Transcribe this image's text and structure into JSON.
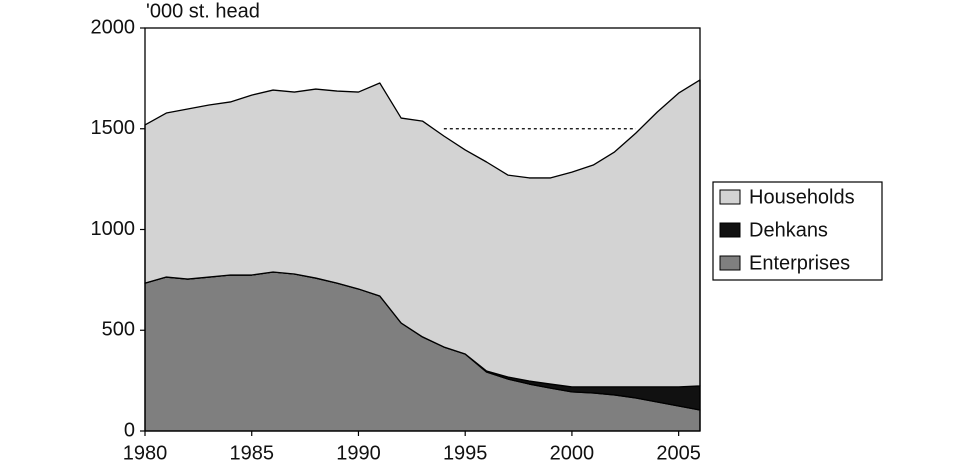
{
  "chart_data": {
    "type": "stacked_area",
    "y_axis_label": "'000 st. head",
    "x": [
      1980,
      1981,
      1982,
      1983,
      1984,
      1985,
      1986,
      1987,
      1988,
      1989,
      1990,
      1991,
      1992,
      1993,
      1994,
      1995,
      1996,
      1997,
      1998,
      1999,
      2000,
      2001,
      2002,
      2003,
      2004,
      2005,
      2006
    ],
    "series": [
      {
        "name": "Households",
        "color": "#d3d3d3",
        "values": [
          785,
          814,
          844,
          854,
          859,
          893,
          903,
          903,
          938,
          953,
          977,
          1057,
          1017,
          1071,
          1047,
          1013,
          1037,
          1002,
          1008,
          1023,
          1066,
          1101,
          1166,
          1260,
          1364,
          1458,
          1518
        ]
      },
      {
        "name": "Dehkans",
        "color": "#111111",
        "values": [
          0,
          0,
          0,
          0,
          0,
          0,
          0,
          0,
          0,
          0,
          0,
          0,
          0,
          0,
          0,
          0,
          5,
          10,
          15,
          20,
          25,
          30,
          40,
          55,
          75,
          95,
          120
        ]
      },
      {
        "name": "Enterprises",
        "color": "#7f7f7f",
        "values": [
          734,
          764,
          754,
          764,
          774,
          774,
          789,
          779,
          759,
          734,
          705,
          670,
          536,
          467,
          417,
          382,
          293,
          258,
          233,
          213,
          194,
          189,
          179,
          164,
          144,
          124,
          104
        ]
      }
    ],
    "xlim": [
      1980,
      2006
    ],
    "xticks": [
      1980,
      1985,
      1990,
      1995,
      2000,
      2005
    ],
    "ylim": [
      0,
      2000
    ],
    "yticks": [
      0,
      500,
      1000,
      1500,
      2000
    ],
    "dashed_line": {
      "y": 1500,
      "x": [
        1994,
        2003
      ]
    },
    "legend_position": "right"
  }
}
